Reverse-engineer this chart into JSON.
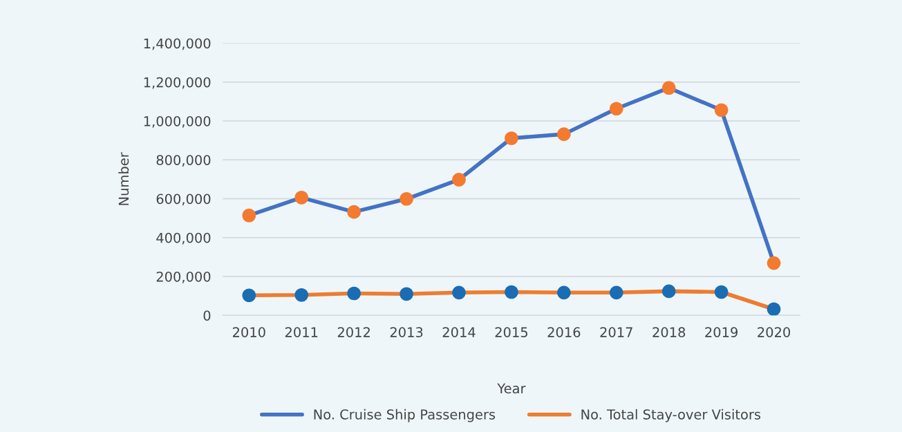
{
  "chart_data": {
    "type": "line",
    "xlabel": "Year",
    "ylabel": "Number",
    "categories": [
      "2010",
      "2011",
      "2012",
      "2013",
      "2014",
      "2015",
      "2016",
      "2017",
      "2018",
      "2019",
      "2020"
    ],
    "series": [
      {
        "name": "No. Cruise Ship Passengers",
        "color": "#4472c4",
        "colors": [
          "#f47a2f",
          "#f47a2f",
          "#f47a2f",
          "#f47a2f",
          "#f47a2f",
          "#f47a2f",
          "#f47a2f",
          "#f47a2f",
          "#f47a2f",
          "#f47a2f",
          "#f47a2f"
        ],
        "values": [
          514000,
          606000,
          532000,
          599000,
          698000,
          911000,
          932000,
          1063000,
          1170000,
          1056000,
          269000
        ]
      },
      {
        "name": "No. Total Stay-over Visitors",
        "color": "#ed7d31",
        "colors": [
          "#1b6db3",
          "#1b6db3",
          "#1b6db3",
          "#1b6db3",
          "#1b6db3",
          "#1b6db3",
          "#1b6db3",
          "#1b6db3",
          "#1b6db3",
          "#1b6db3",
          "#1b6db3"
        ],
        "values": [
          103000,
          105000,
          113000,
          110000,
          117000,
          120000,
          117000,
          117000,
          124000,
          120000,
          32000
        ]
      }
    ],
    "ylim": [
      0,
      1400000
    ],
    "yticks": [
      {
        "value": 0,
        "label": "0"
      },
      {
        "value": 200000,
        "label": "200,000"
      },
      {
        "value": 400000,
        "label": "400,000"
      },
      {
        "value": 600000,
        "label": "600,000"
      },
      {
        "value": 800000,
        "label": "800,000"
      },
      {
        "value": 1000000,
        "label": "1,000,000"
      },
      {
        "value": 1200000,
        "label": "1,200,000"
      },
      {
        "value": 1400000,
        "label": "1,400,000"
      }
    ],
    "grid": "y",
    "legend": "bottom",
    "marker": "circle",
    "line_style": "solid"
  }
}
